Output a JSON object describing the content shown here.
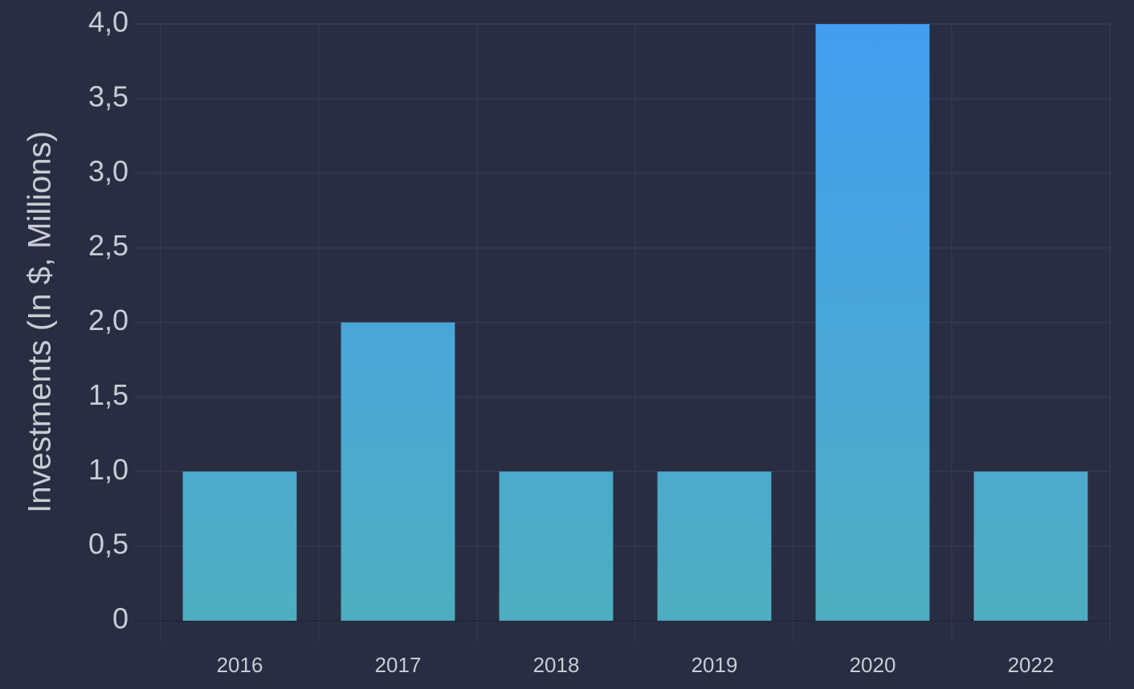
{
  "chart_data": {
    "type": "bar",
    "y_label": "Investments (In $, Millions)",
    "categories": [
      "2016",
      "2017",
      "2018",
      "2019",
      "2020",
      "2022"
    ],
    "values": [
      1,
      2,
      1,
      1,
      4,
      1
    ],
    "gradient": [
      "#4eaec0",
      "#449ef1"
    ],
    "ylim": [
      0,
      4
    ],
    "yticks": [
      0,
      {
        "value": 0.5,
        "label": "0,5"
      },
      {
        "value": 1,
        "label": "1,0"
      },
      {
        "value": 1.5,
        "label": "1,5"
      },
      {
        "value": 2,
        "label": "2,0"
      },
      {
        "value": 2.5,
        "label": "2,5"
      },
      {
        "value": 3,
        "label": "3,0"
      },
      {
        "value": 3.5,
        "label": "3,5"
      },
      {
        "value": 4,
        "label": "4,0"
      }
    ],
    "grid": true
  }
}
